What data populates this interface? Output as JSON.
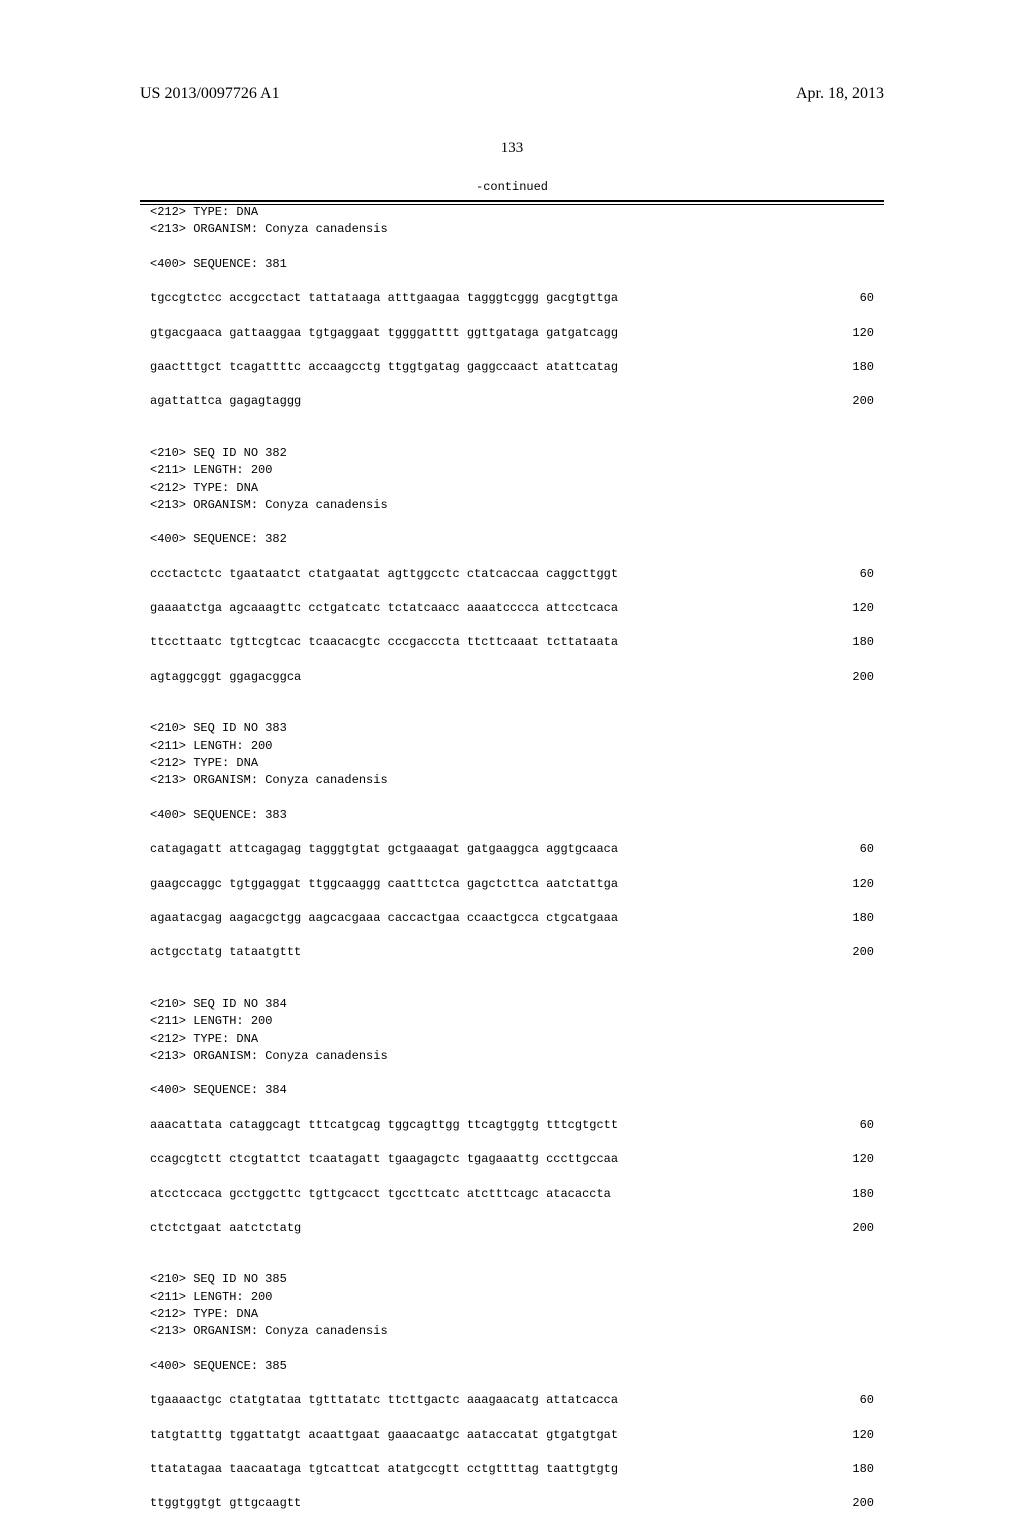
{
  "header": {
    "left": "US 2013/0097726 A1",
    "right": "Apr. 18, 2013",
    "page": "133",
    "continued": "-continued"
  },
  "topEntry": {
    "meta": [
      "<212> TYPE: DNA",
      "<213> ORGANISM: Conyza canadensis"
    ],
    "seqLabel": "<400> SEQUENCE: 381",
    "lines": [
      {
        "text": "tgccgtctcc accgcctact tattataaga atttgaagaa tagggtcggg gacgtgttga",
        "pos": "60"
      },
      {
        "text": "gtgacgaaca gattaaggaa tgtgaggaat tggggatttt ggttgataga gatgatcagg",
        "pos": "120"
      },
      {
        "text": "gaactttgct tcagattttc accaagcctg ttggtgatag gaggccaact atattcatag",
        "pos": "180"
      },
      {
        "text": "agattattca gagagtaggg",
        "pos": "200"
      }
    ]
  },
  "entries": [
    {
      "meta": [
        "<210> SEQ ID NO 382",
        "<211> LENGTH: 200",
        "<212> TYPE: DNA",
        "<213> ORGANISM: Conyza canadensis"
      ],
      "seqLabel": "<400> SEQUENCE: 382",
      "lines": [
        {
          "text": "ccctactctc tgaataatct ctatgaatat agttggcctc ctatcaccaa caggcttggt",
          "pos": "60"
        },
        {
          "text": "gaaaatctga agcaaagttc cctgatcatc tctatcaacc aaaatcccca attcctcaca",
          "pos": "120"
        },
        {
          "text": "ttccttaatc tgttcgtcac tcaacacgtc cccgacccta ttcttcaaat tcttataata",
          "pos": "180"
        },
        {
          "text": "agtaggcggt ggagacggca",
          "pos": "200"
        }
      ]
    },
    {
      "meta": [
        "<210> SEQ ID NO 383",
        "<211> LENGTH: 200",
        "<212> TYPE: DNA",
        "<213> ORGANISM: Conyza canadensis"
      ],
      "seqLabel": "<400> SEQUENCE: 383",
      "lines": [
        {
          "text": "catagagatt attcagagag tagggtgtat gctgaaagat gatgaaggca aggtgcaaca",
          "pos": "60"
        },
        {
          "text": "gaagccaggc tgtggaggat ttggcaaggg caatttctca gagctcttca aatctattga",
          "pos": "120"
        },
        {
          "text": "agaatacgag aagacgctgg aagcacgaaa caccactgaa ccaactgcca ctgcatgaaa",
          "pos": "180"
        },
        {
          "text": "actgcctatg tataatgttt",
          "pos": "200"
        }
      ]
    },
    {
      "meta": [
        "<210> SEQ ID NO 384",
        "<211> LENGTH: 200",
        "<212> TYPE: DNA",
        "<213> ORGANISM: Conyza canadensis"
      ],
      "seqLabel": "<400> SEQUENCE: 384",
      "lines": [
        {
          "text": "aaacattata cataggcagt tttcatgcag tggcagttgg ttcagtggtg tttcgtgctt",
          "pos": "60"
        },
        {
          "text": "ccagcgtctt ctcgtattct tcaatagatt tgaagagctc tgagaaattg cccttgccaa",
          "pos": "120"
        },
        {
          "text": "atcctccaca gcctggcttc tgttgcacct tgccttcatc atctttcagc atacaccta",
          "pos": "180"
        },
        {
          "text": "ctctctgaat aatctctatg",
          "pos": "200"
        }
      ]
    },
    {
      "meta": [
        "<210> SEQ ID NO 385",
        "<211> LENGTH: 200",
        "<212> TYPE: DNA",
        "<213> ORGANISM: Conyza canadensis"
      ],
      "seqLabel": "<400> SEQUENCE: 385",
      "lines": [
        {
          "text": "tgaaaactgc ctatgtataa tgtttatatc ttcttgactc aaagaacatg attatcacca",
          "pos": "60"
        },
        {
          "text": "tatgtatttg tggattatgt acaattgaat gaaacaatgc aataccatat gtgatgtgat",
          "pos": "120"
        },
        {
          "text": "ttatatagaa taacaataga tgtcattcat atatgccgtt cctgttttag taattgtgtg",
          "pos": "180"
        },
        {
          "text": "ttggtggtgt gttgcaagtt",
          "pos": "200"
        }
      ]
    }
  ]
}
